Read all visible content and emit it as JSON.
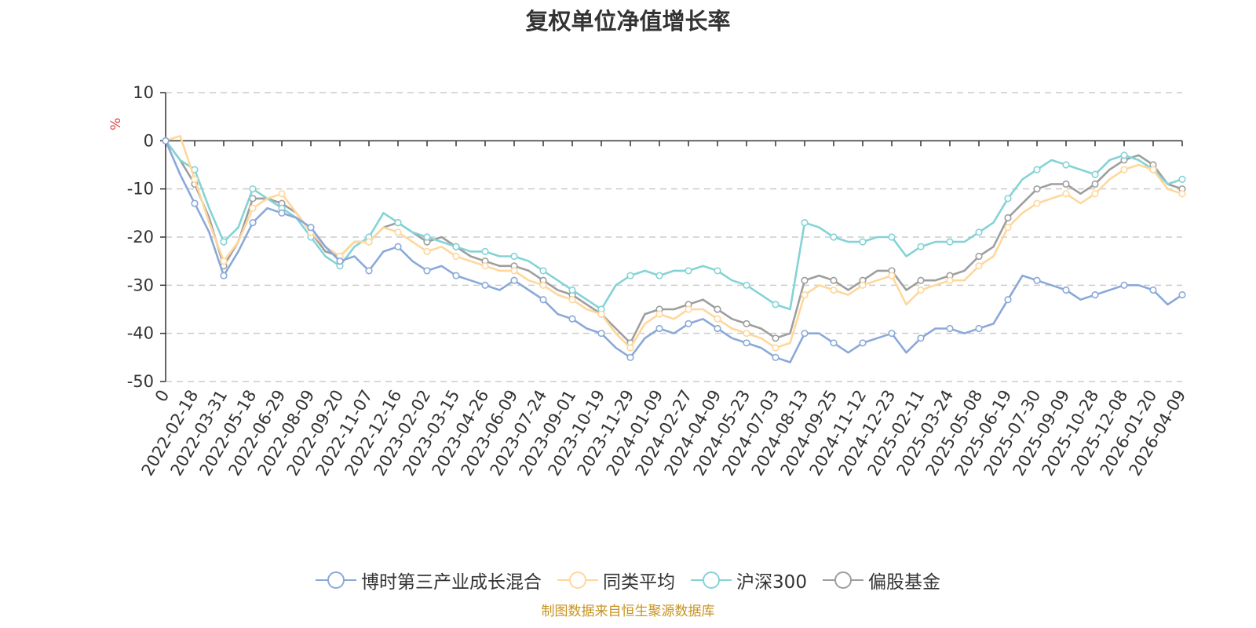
{
  "title": "复权单位净值增长率",
  "source": "制图数据来自恒生聚源数据库",
  "chart_data": {
    "type": "line",
    "title": "复权单位净值增长率",
    "ylabel": "%",
    "ylim": [
      -50,
      10
    ],
    "yticks": [
      10,
      0,
      -10,
      -20,
      -30,
      -40,
      -50
    ],
    "x_tick_labels": [
      "0",
      "2022-02-18",
      "2022-03-31",
      "2022-05-18",
      "2022-06-29",
      "2022-08-09",
      "2022-09-20",
      "2022-11-07",
      "2022-12-16",
      "2023-02-02",
      "2023-03-15",
      "2023-04-26",
      "2023-06-09",
      "2023-07-24",
      "2023-09-01",
      "2023-10-19",
      "2023-11-29",
      "2024-01-09",
      "2024-02-27",
      "2024-04-09",
      "2024-05-23",
      "2024-07-03",
      "2024-08-13",
      "2024-09-25",
      "2024-11-12",
      "2024-12-23",
      "2025-02-11",
      "2025-03-24",
      "2025-05-08",
      "2025-06-19",
      "2025-07-30",
      "2025-09-09",
      "2025-10-28",
      "2025-12-08",
      "2026-01-20",
      "2026-04-09"
    ],
    "x": [
      0,
      0.5,
      1,
      1.5,
      2,
      2.5,
      3,
      3.5,
      4,
      4.5,
      5,
      5.5,
      6,
      6.5,
      7,
      7.5,
      8,
      8.5,
      9,
      9.5,
      10,
      10.5,
      11,
      11.5,
      12,
      12.5,
      13,
      13.5,
      14,
      14.5,
      15,
      15.5,
      16,
      16.5,
      17,
      17.5,
      18,
      18.5,
      19,
      19.5,
      20,
      20.5,
      21,
      21.5,
      22,
      22.5,
      23,
      23.5,
      24,
      24.5,
      25,
      25.5,
      26,
      26.5,
      27,
      27.5,
      28,
      28.5,
      29,
      29.5,
      30,
      30.5,
      31,
      31.5,
      32,
      32.5,
      33,
      33.5,
      34,
      34.5,
      35
    ],
    "series": [
      {
        "name": "博时第三产业成长混合",
        "color": "#8aa9d9",
        "values": [
          0,
          -7,
          -13,
          -19,
          -28,
          -23,
          -17,
          -14,
          -15,
          -16,
          -18,
          -22,
          -25,
          -24,
          -27,
          -23,
          -22,
          -25,
          -27,
          -26,
          -28,
          -29,
          -30,
          -31,
          -29,
          -31,
          -33,
          -36,
          -37,
          -39,
          -40,
          -43,
          -45,
          -41,
          -39,
          -40,
          -38,
          -37,
          -39,
          -41,
          -42,
          -43,
          -45,
          -46,
          -40,
          -40,
          -42,
          -44,
          -42,
          -41,
          -40,
          -44,
          -41,
          -39,
          -39,
          -40,
          -39,
          -38,
          -33,
          -28,
          -29,
          -30,
          -31,
          -33,
          -32,
          -31,
          -30,
          -30,
          -31,
          -34,
          -32
        ]
      },
      {
        "name": "同类平均",
        "color": "#ffd79b",
        "values": [
          0,
          1,
          -8,
          -17,
          -25,
          -21,
          -14,
          -12,
          -11,
          -15,
          -19,
          -22,
          -24,
          -21,
          -21,
          -18,
          -19,
          -21,
          -23,
          -22,
          -24,
          -25,
          -26,
          -27,
          -27,
          -29,
          -30,
          -32,
          -33,
          -35,
          -36,
          -40,
          -43,
          -38,
          -36,
          -37,
          -35,
          -35,
          -37,
          -39,
          -40,
          -41,
          -43,
          -42,
          -32,
          -30,
          -31,
          -32,
          -30,
          -29,
          -28,
          -34,
          -31,
          -30,
          -29,
          -29,
          -26,
          -24,
          -18,
          -15,
          -13,
          -12,
          -11,
          -13,
          -11,
          -8,
          -6,
          -5,
          -6,
          -10,
          -11
        ]
      },
      {
        "name": "沪深300",
        "color": "#84d3d6",
        "values": [
          0,
          -4,
          -6,
          -14,
          -21,
          -18,
          -10,
          -12,
          -14,
          -16,
          -20,
          -24,
          -26,
          -22,
          -20,
          -15,
          -17,
          -19,
          -20,
          -21,
          -22,
          -23,
          -23,
          -24,
          -24,
          -25,
          -27,
          -29,
          -31,
          -33,
          -35,
          -30,
          -28,
          -27,
          -28,
          -27,
          -27,
          -26,
          -27,
          -29,
          -30,
          -32,
          -34,
          -35,
          -17,
          -18,
          -20,
          -21,
          -21,
          -20,
          -20,
          -24,
          -22,
          -21,
          -21,
          -21,
          -19,
          -17,
          -12,
          -8,
          -6,
          -4,
          -5,
          -6,
          -7,
          -4,
          -3,
          -4,
          -6,
          -9,
          -8
        ]
      },
      {
        "name": "偏股基金",
        "color": "#9e9e9e",
        "values": [
          0,
          -4,
          -9,
          -16,
          -26,
          -21,
          -12,
          -12,
          -13,
          -15,
          -19,
          -23,
          -24,
          -21,
          -21,
          -18,
          -17,
          -19,
          -21,
          -20,
          -22,
          -24,
          -25,
          -26,
          -26,
          -27,
          -29,
          -31,
          -32,
          -34,
          -36,
          -39,
          -42,
          -36,
          -35,
          -35,
          -34,
          -33,
          -35,
          -37,
          -38,
          -39,
          -41,
          -40,
          -29,
          -28,
          -29,
          -31,
          -29,
          -27,
          -27,
          -31,
          -29,
          -29,
          -28,
          -27,
          -24,
          -22,
          -16,
          -13,
          -10,
          -9,
          -9,
          -11,
          -9,
          -6,
          -4,
          -3,
          -5,
          -9,
          -10
        ]
      }
    ]
  }
}
